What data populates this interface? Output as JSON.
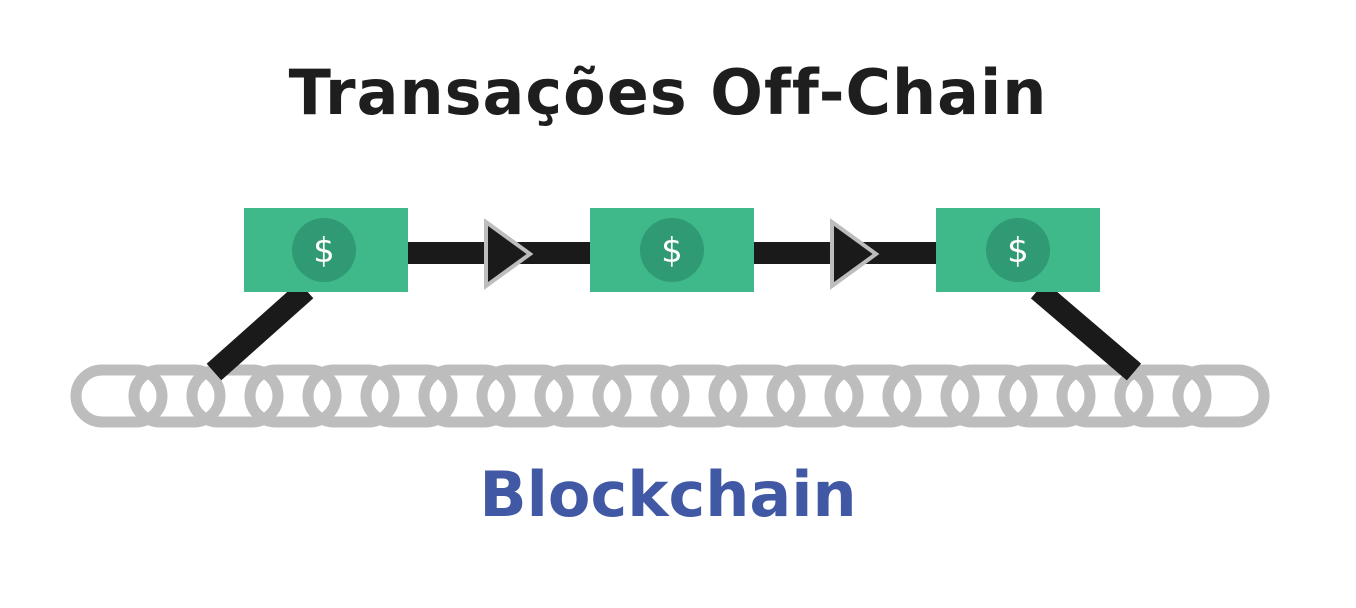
{
  "title": "Transações Off-Chain",
  "subtitle": "Blockchain",
  "note_symbol": "$",
  "colors": {
    "title": "#1e1e1e",
    "subtitle": "#4159a5",
    "note": "#3fb88a",
    "note_circle": "#2f9a73",
    "connector": "#1a1a1a",
    "chain": "#b8b8b8"
  }
}
